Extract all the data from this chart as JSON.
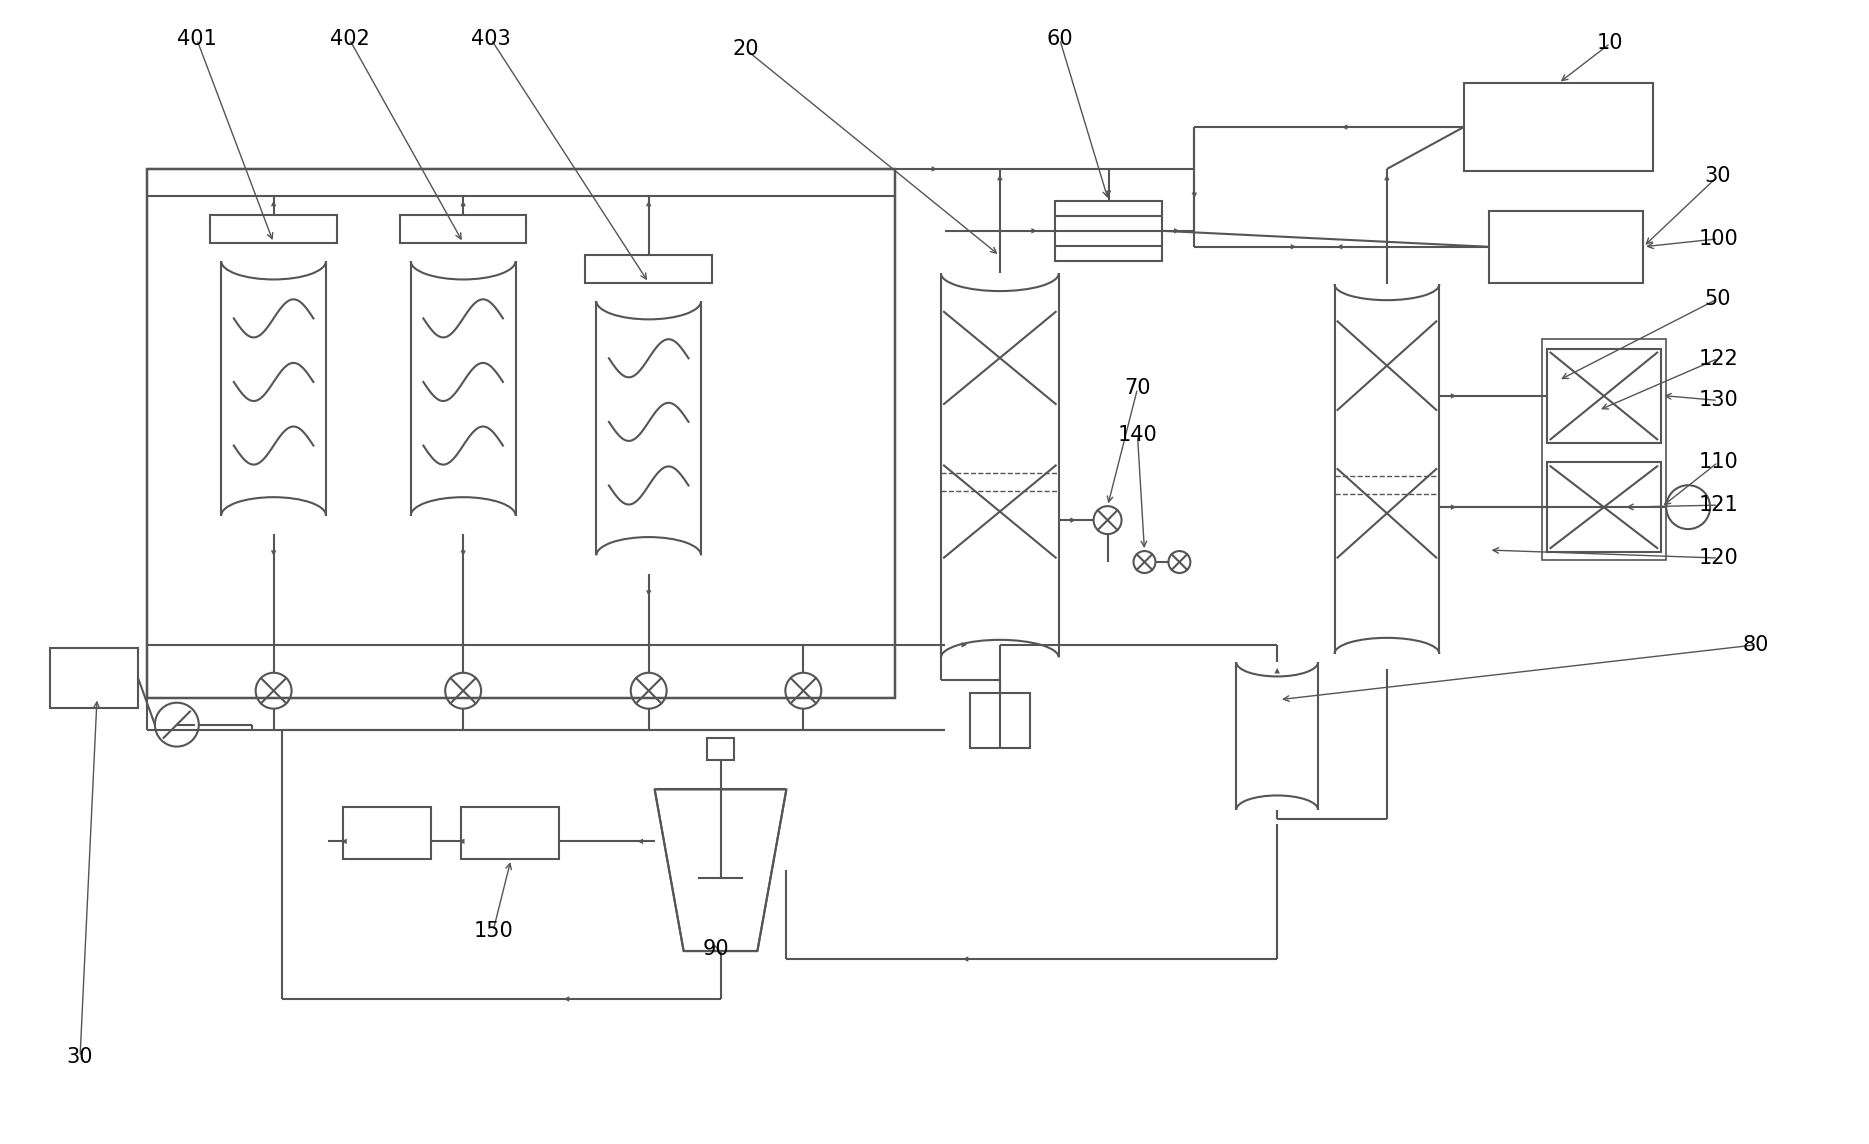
{
  "bg_color": "#ffffff",
  "line_color": "#555555",
  "line_width": 1.5,
  "fig_w": 18.69,
  "fig_h": 11.44,
  "dpi": 100
}
